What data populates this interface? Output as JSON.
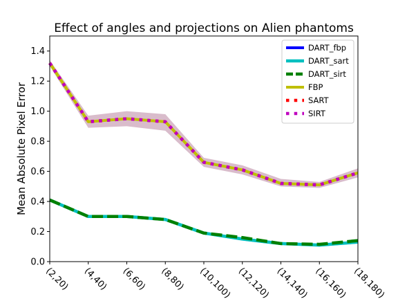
{
  "chart_data": {
    "type": "line",
    "title": "Effect of angles and projections on Alien phantoms",
    "xlabel": "",
    "ylabel": "Mean Absolute Pixel Error",
    "categories": [
      "(2,20)",
      "(4,40)",
      "(6,60)",
      "(8,80)",
      "(10,100)",
      "(12,120)",
      "(14,140)",
      "(16,160)",
      "(18,180)"
    ],
    "ylim": [
      0.0,
      1.5
    ],
    "yticks": [
      "0.0",
      "0.2",
      "0.4",
      "0.6",
      "0.8",
      "1.0",
      "1.2",
      "1.4"
    ],
    "legend_position": "top-right",
    "grid": false,
    "series": [
      {
        "name": "DART_fbp",
        "color": "#0000ff",
        "style": "solid",
        "values": [
          0.41,
          0.3,
          0.3,
          0.28,
          0.19,
          0.15,
          0.12,
          0.11,
          0.13
        ]
      },
      {
        "name": "DART_sart",
        "color": "#00bfbf",
        "style": "solid",
        "values": [
          0.41,
          0.3,
          0.3,
          0.28,
          0.19,
          0.15,
          0.12,
          0.11,
          0.13
        ]
      },
      {
        "name": "DART_sirt",
        "color": "#008000",
        "style": "dashed",
        "values": [
          0.41,
          0.3,
          0.3,
          0.28,
          0.19,
          0.16,
          0.12,
          0.115,
          0.14
        ]
      },
      {
        "name": "FBP",
        "color": "#bfbf00",
        "style": "solid",
        "values": [
          1.32,
          0.93,
          0.95,
          0.93,
          0.66,
          0.61,
          0.52,
          0.51,
          0.59
        ]
      },
      {
        "name": "SART",
        "color": "#ff0000",
        "style": "dotted",
        "values": [
          1.32,
          0.93,
          0.95,
          0.93,
          0.66,
          0.61,
          0.52,
          0.51,
          0.59
        ]
      },
      {
        "name": "SIRT",
        "color": "#bf00bf",
        "style": "dotted",
        "values": [
          1.32,
          0.93,
          0.95,
          0.93,
          0.66,
          0.61,
          0.52,
          0.51,
          0.59
        ]
      }
    ],
    "bands": [
      {
        "color": "#bf8fa8",
        "lower": [
          1.3,
          0.89,
          0.9,
          0.87,
          0.63,
          0.58,
          0.5,
          0.49,
          0.56
        ],
        "upper": [
          1.34,
          0.97,
          1.0,
          0.98,
          0.69,
          0.64,
          0.55,
          0.53,
          0.62
        ]
      }
    ]
  }
}
